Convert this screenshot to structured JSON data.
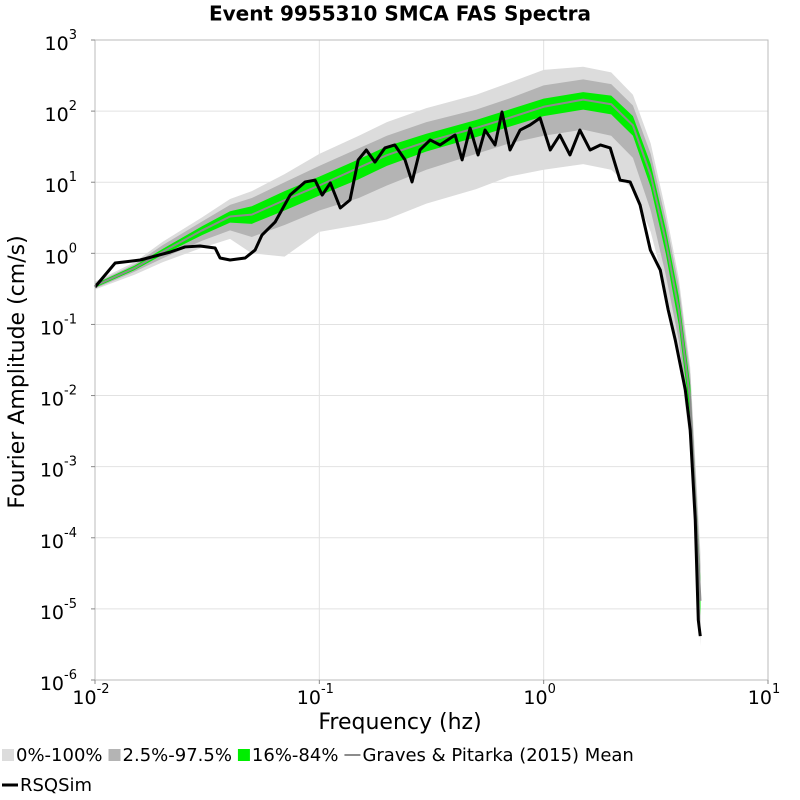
{
  "chart_data": {
    "type": "line",
    "title": "Event 9955310 SMCA FAS Spectra",
    "xlabel": "Frequency (hz)",
    "ylabel": "Fourier Amplitude (cm/s)",
    "log_scale": true,
    "grid": true,
    "xlim": [
      0.01,
      10
    ],
    "ylim": [
      1e-06,
      1000
    ],
    "xticks": [
      {
        "value": 0.01,
        "label": "10",
        "power": "-2"
      },
      {
        "value": 0.1,
        "label": "10",
        "power": "-1"
      },
      {
        "value": 1,
        "label": "10",
        "power": "0"
      },
      {
        "value": 10,
        "label": "10",
        "power": "1"
      }
    ],
    "yticks": [
      {
        "value": 1e-06,
        "label": "10",
        "power": "-6"
      },
      {
        "value": 1e-05,
        "label": "10",
        "power": "-5"
      },
      {
        "value": 0.0001,
        "label": "10",
        "power": "-4"
      },
      {
        "value": 0.001,
        "label": "10",
        "power": "-3"
      },
      {
        "value": 0.01,
        "label": "10",
        "power": "-2"
      },
      {
        "value": 0.1,
        "label": "10",
        "power": "-1"
      },
      {
        "value": 1,
        "label": "10",
        "power": "0"
      },
      {
        "value": 10,
        "label": "10",
        "power": "1"
      },
      {
        "value": 100,
        "label": "10",
        "power": "2"
      },
      {
        "value": 1000,
        "label": "10",
        "power": "3"
      }
    ],
    "x": [
      0.01,
      0.015,
      0.02,
      0.03,
      0.04,
      0.05,
      0.07,
      0.1,
      0.15,
      0.2,
      0.3,
      0.5,
      0.7,
      1,
      1.5,
      2,
      2.5,
      3,
      3.5,
      4,
      4.5,
      5
    ],
    "series": [
      {
        "name": "0%-100%",
        "color": "#dcdcdc",
        "lower": [
          0.31,
          0.5,
          0.75,
          1.2,
          1.6,
          1,
          0.9,
          2,
          2.5,
          3,
          5,
          8,
          12,
          15,
          18,
          15,
          8,
          2,
          0.3,
          0.04,
          0.002,
          3e-06
        ],
        "upper": [
          0.4,
          0.75,
          1.45,
          3.2,
          5.8,
          7.5,
          13,
          25,
          45,
          70,
          110,
          170,
          250,
          380,
          420,
          350,
          170,
          35,
          4,
          0.45,
          0.025,
          6e-05
        ]
      },
      {
        "name": "2.5%-97.5%",
        "color": "#b4b4b4",
        "lower": [
          0.32,
          0.55,
          0.85,
          1.5,
          2.1,
          1.7,
          2.5,
          4,
          6,
          9,
          15,
          25,
          35,
          45,
          55,
          45,
          22,
          4,
          0.5,
          0.06,
          0.003,
          5e-06
        ],
        "upper": [
          0.38,
          0.7,
          1.3,
          2.8,
          4.8,
          6,
          10,
          17,
          30,
          45,
          70,
          105,
          150,
          230,
          280,
          240,
          120,
          25,
          3,
          0.35,
          0.02,
          4e-05
        ]
      },
      {
        "name": "16%-84%",
        "color": "#00ee00",
        "lower": [
          0.33,
          0.58,
          0.95,
          1.8,
          2.7,
          2.6,
          4,
          6.5,
          11,
          17,
          27,
          43,
          60,
          85,
          105,
          90,
          45,
          8.5,
          1,
          0.1,
          0.005,
          8e-06
        ],
        "upper": [
          0.37,
          0.67,
          1.15,
          2.4,
          3.9,
          4.6,
          7.5,
          12,
          21,
          32,
          48,
          75,
          105,
          150,
          185,
          165,
          85,
          18,
          2.2,
          0.25,
          0.014,
          2.5e-05
        ]
      },
      {
        "name": "Graves & Pitarka (2015) Mean",
        "color": "#8c8c8c",
        "values": [
          0.35,
          0.62,
          1.05,
          2.1,
          3.3,
          3.5,
          5.6,
          9,
          16,
          24,
          37,
          58,
          80,
          115,
          145,
          125,
          63,
          12.5,
          1.5,
          0.16,
          0.0087,
          1.3e-05
        ]
      },
      {
        "name": "RSQSim",
        "color": "#000000",
        "x": [
          0.01,
          0.0123,
          0.0159,
          0.0216,
          0.0252,
          0.0294,
          0.0343,
          0.0361,
          0.04,
          0.0467,
          0.0517,
          0.0555,
          0.0635,
          0.0741,
          0.0865,
          0.0957,
          0.103,
          0.112,
          0.124,
          0.137,
          0.149,
          0.162,
          0.177,
          0.196,
          0.217,
          0.241,
          0.259,
          0.281,
          0.312,
          0.345,
          0.403,
          0.433,
          0.47,
          0.51,
          0.548,
          0.607,
          0.652,
          0.708,
          0.785,
          0.869,
          0.964,
          1.07,
          1.18,
          1.31,
          1.45,
          1.61,
          1.79,
          1.98,
          2.19,
          2.43,
          2.69,
          2.99,
          3.31,
          3.59,
          3.86,
          4.28,
          4.5,
          4.74,
          4.89,
          4.99
        ],
        "values": [
          0.336,
          0.731,
          0.806,
          1.04,
          1.23,
          1.27,
          1.19,
          0.86,
          0.806,
          0.86,
          1.11,
          1.81,
          2.75,
          6.6,
          10.1,
          10.7,
          6.6,
          9.75,
          4.34,
          5.62,
          20.6,
          28.4,
          19.2,
          30.3,
          33.4,
          20.6,
          10.1,
          28.4,
          39.3,
          33.4,
          46.1,
          20.6,
          57.8,
          24.2,
          54.2,
          33.4,
          97.1,
          28.4,
          54.2,
          63.8,
          80,
          28.4,
          46.1,
          24.2,
          54.2,
          28.4,
          33.4,
          30.3,
          10.7,
          10.1,
          4.78,
          1.11,
          0.582,
          0.16,
          0.0604,
          0.012,
          0.00327,
          0.000177,
          6.95e-06,
          4.14e-06
        ]
      }
    ]
  }
}
